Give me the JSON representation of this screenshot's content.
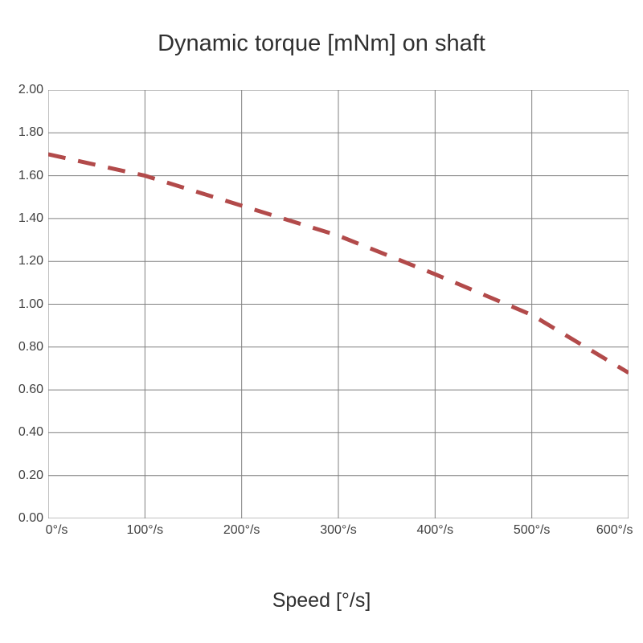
{
  "chart": {
    "type": "line",
    "title": "Dynamic torque [mNm]  on shaft",
    "title_fontsize": 29,
    "xlabel": "Speed  [°/s]",
    "xlabel_fontsize": 25,
    "background_color": "#ffffff",
    "grid_color": "#808080",
    "grid_width": 1,
    "border_color": "#808080",
    "x_ticks": [
      {
        "value": 0,
        "label": "0°/s"
      },
      {
        "value": 100,
        "label": "100°/s"
      },
      {
        "value": 200,
        "label": "200°/s"
      },
      {
        "value": 300,
        "label": "300°/s"
      },
      {
        "value": 400,
        "label": "400°/s"
      },
      {
        "value": 500,
        "label": "500°/s"
      },
      {
        "value": 600,
        "label": "600°/s"
      }
    ],
    "y_ticks": [
      {
        "value": 0.0,
        "label": "0.00"
      },
      {
        "value": 0.2,
        "label": "0.20"
      },
      {
        "value": 0.4,
        "label": "0.40"
      },
      {
        "value": 0.6,
        "label": "0.60"
      },
      {
        "value": 0.8,
        "label": "0.80"
      },
      {
        "value": 1.0,
        "label": "1.00"
      },
      {
        "value": 1.2,
        "label": "1.20"
      },
      {
        "value": 1.4,
        "label": "1.40"
      },
      {
        "value": 1.6,
        "label": "1.60"
      },
      {
        "value": 1.8,
        "label": "1.80"
      },
      {
        "value": 2.0,
        "label": "2.00"
      }
    ],
    "xlim": [
      0,
      600
    ],
    "ylim": [
      0,
      2.0
    ],
    "series": [
      {
        "name": "torque",
        "color": "#b24a4a",
        "line_width": 5,
        "dash_pattern": "22 16",
        "points": [
          {
            "x": 0,
            "y": 1.7
          },
          {
            "x": 100,
            "y": 1.6
          },
          {
            "x": 200,
            "y": 1.46
          },
          {
            "x": 300,
            "y": 1.32
          },
          {
            "x": 400,
            "y": 1.14
          },
          {
            "x": 500,
            "y": 0.95
          },
          {
            "x": 600,
            "y": 0.68
          }
        ]
      }
    ],
    "tick_label_fontsize": 16,
    "tick_label_color": "#404040"
  }
}
